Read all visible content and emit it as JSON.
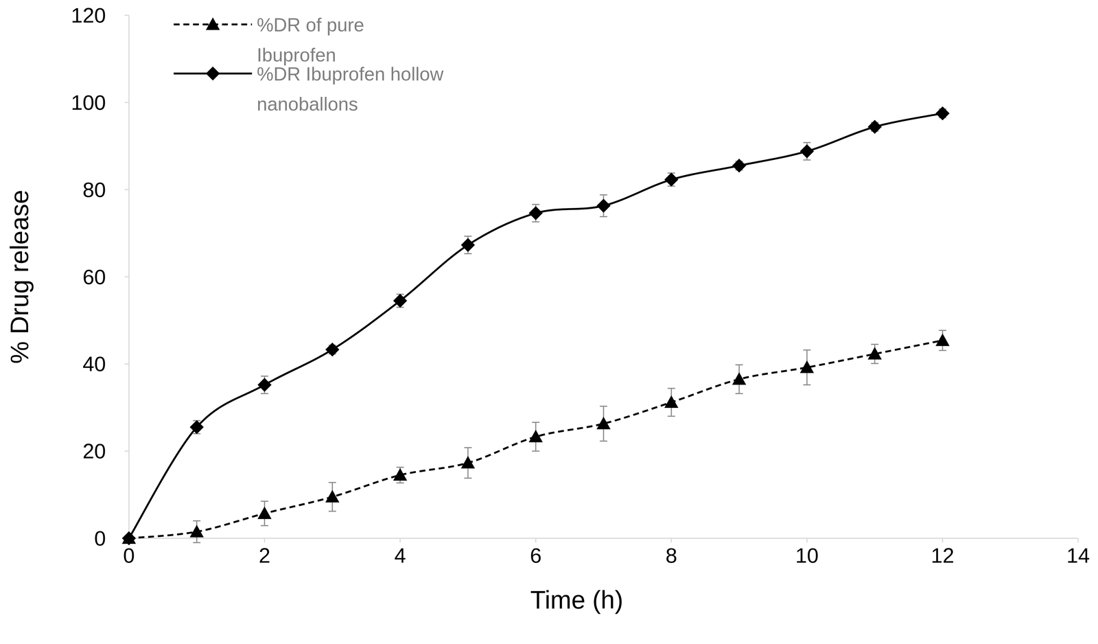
{
  "chart_data": {
    "type": "line",
    "x_label": "Time (h)",
    "y_label": "% Drug release",
    "x": [
      0,
      1,
      2,
      3,
      4,
      5,
      6,
      7,
      8,
      9,
      10,
      11,
      12
    ],
    "xlim": [
      0,
      14
    ],
    "xticks": [
      0,
      2,
      4,
      6,
      8,
      10,
      12,
      14
    ],
    "ylim": [
      0,
      120
    ],
    "yticks": [
      0,
      20,
      40,
      60,
      80,
      100,
      120
    ],
    "grid": false,
    "legend": "top-left",
    "series": [
      {
        "name": "%DR of pure Ibuprofen",
        "color": "#000000",
        "marker": "triangle",
        "line_style": "dashed",
        "values": [
          0,
          1.5,
          5.7,
          9.5,
          14.5,
          17.3,
          23.3,
          26.3,
          31.2,
          36.5,
          39.2,
          42.3,
          45.4
        ],
        "errors": [
          0,
          2.5,
          2.8,
          3.3,
          1.8,
          3.5,
          3.3,
          4,
          3.2,
          3.3,
          4,
          2.2,
          2.3
        ]
      },
      {
        "name": "%DR Ibuprofen hollow nanoballons",
        "color": "#000000",
        "marker": "diamond",
        "line_style": "solid",
        "values": [
          0,
          25.5,
          35.2,
          43.3,
          54.5,
          67.3,
          74.6,
          76.3,
          82.3,
          85.5,
          88.8,
          94.4,
          97.5
        ],
        "errors": [
          0,
          1.5,
          2,
          1,
          1.5,
          2,
          2,
          2.5,
          1.5,
          1,
          2,
          1,
          1
        ]
      }
    ]
  }
}
